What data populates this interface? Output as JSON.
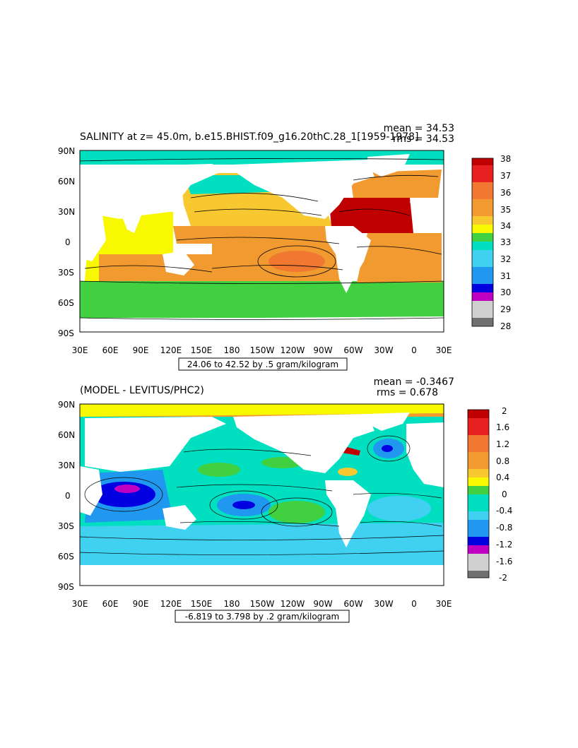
{
  "page": {
    "background": "#ffffff"
  },
  "panels": [
    {
      "title": "SALINITY at z=  45.0m, b.e15.BHIST.f09_g16.20thC.28_1[1959-1978]",
      "stats": {
        "mean": "mean = 34.53",
        "rms": "rms = 34.53"
      },
      "range_label": "24.06 to 42.52 by .5 gram/kilogram",
      "x_ticks": [
        "30E",
        "60E",
        "90E",
        "120E",
        "150E",
        "180",
        "150W",
        "120W",
        "90W",
        "60W",
        "30W",
        "0",
        "30E"
      ],
      "y_ticks": [
        "90N",
        "60N",
        "30N",
        "0",
        "30S",
        "60S",
        "90S"
      ],
      "colorbar": {
        "labels": [
          "38",
          "37",
          "36",
          "35",
          "34",
          "33",
          "32",
          "31",
          "30",
          "29",
          "28"
        ],
        "colors": [
          "#c00000",
          "#e82020",
          "#f07830",
          "#f09a30",
          "#f8c830",
          "#f8f800",
          "#40d040",
          "#00e0c0",
          "#40d0f0",
          "#2098f0",
          "#0000e0",
          "#c000c0",
          "#d0d0d0",
          "#707070"
        ]
      }
    },
    {
      "title": "(MODEL - LEVITUS/PHC2)",
      "stats": {
        "mean": "mean = -0.3467",
        "rms": "rms = 0.678"
      },
      "range_label": "-6.819 to 3.798 by .2 gram/kilogram",
      "x_ticks": [
        "30E",
        "60E",
        "90E",
        "120E",
        "150E",
        "180",
        "150W",
        "120W",
        "90W",
        "60W",
        "30W",
        "0",
        "30E"
      ],
      "y_ticks": [
        "90N",
        "60N",
        "30N",
        "0",
        "30S",
        "60S",
        "90S"
      ],
      "colorbar": {
        "labels": [
          "2",
          "1.6",
          "1.2",
          "0.8",
          "0.4",
          "0",
          "-0.4",
          "-0.8",
          "-1.2",
          "-1.6",
          "-2"
        ],
        "colors": [
          "#c00000",
          "#e82020",
          "#f07830",
          "#f09a30",
          "#f8c830",
          "#f8f800",
          "#40d040",
          "#00e0c0",
          "#40d0f0",
          "#2098f0",
          "#0000e0",
          "#c000c0",
          "#d0d0d0",
          "#707070"
        ]
      }
    }
  ]
}
